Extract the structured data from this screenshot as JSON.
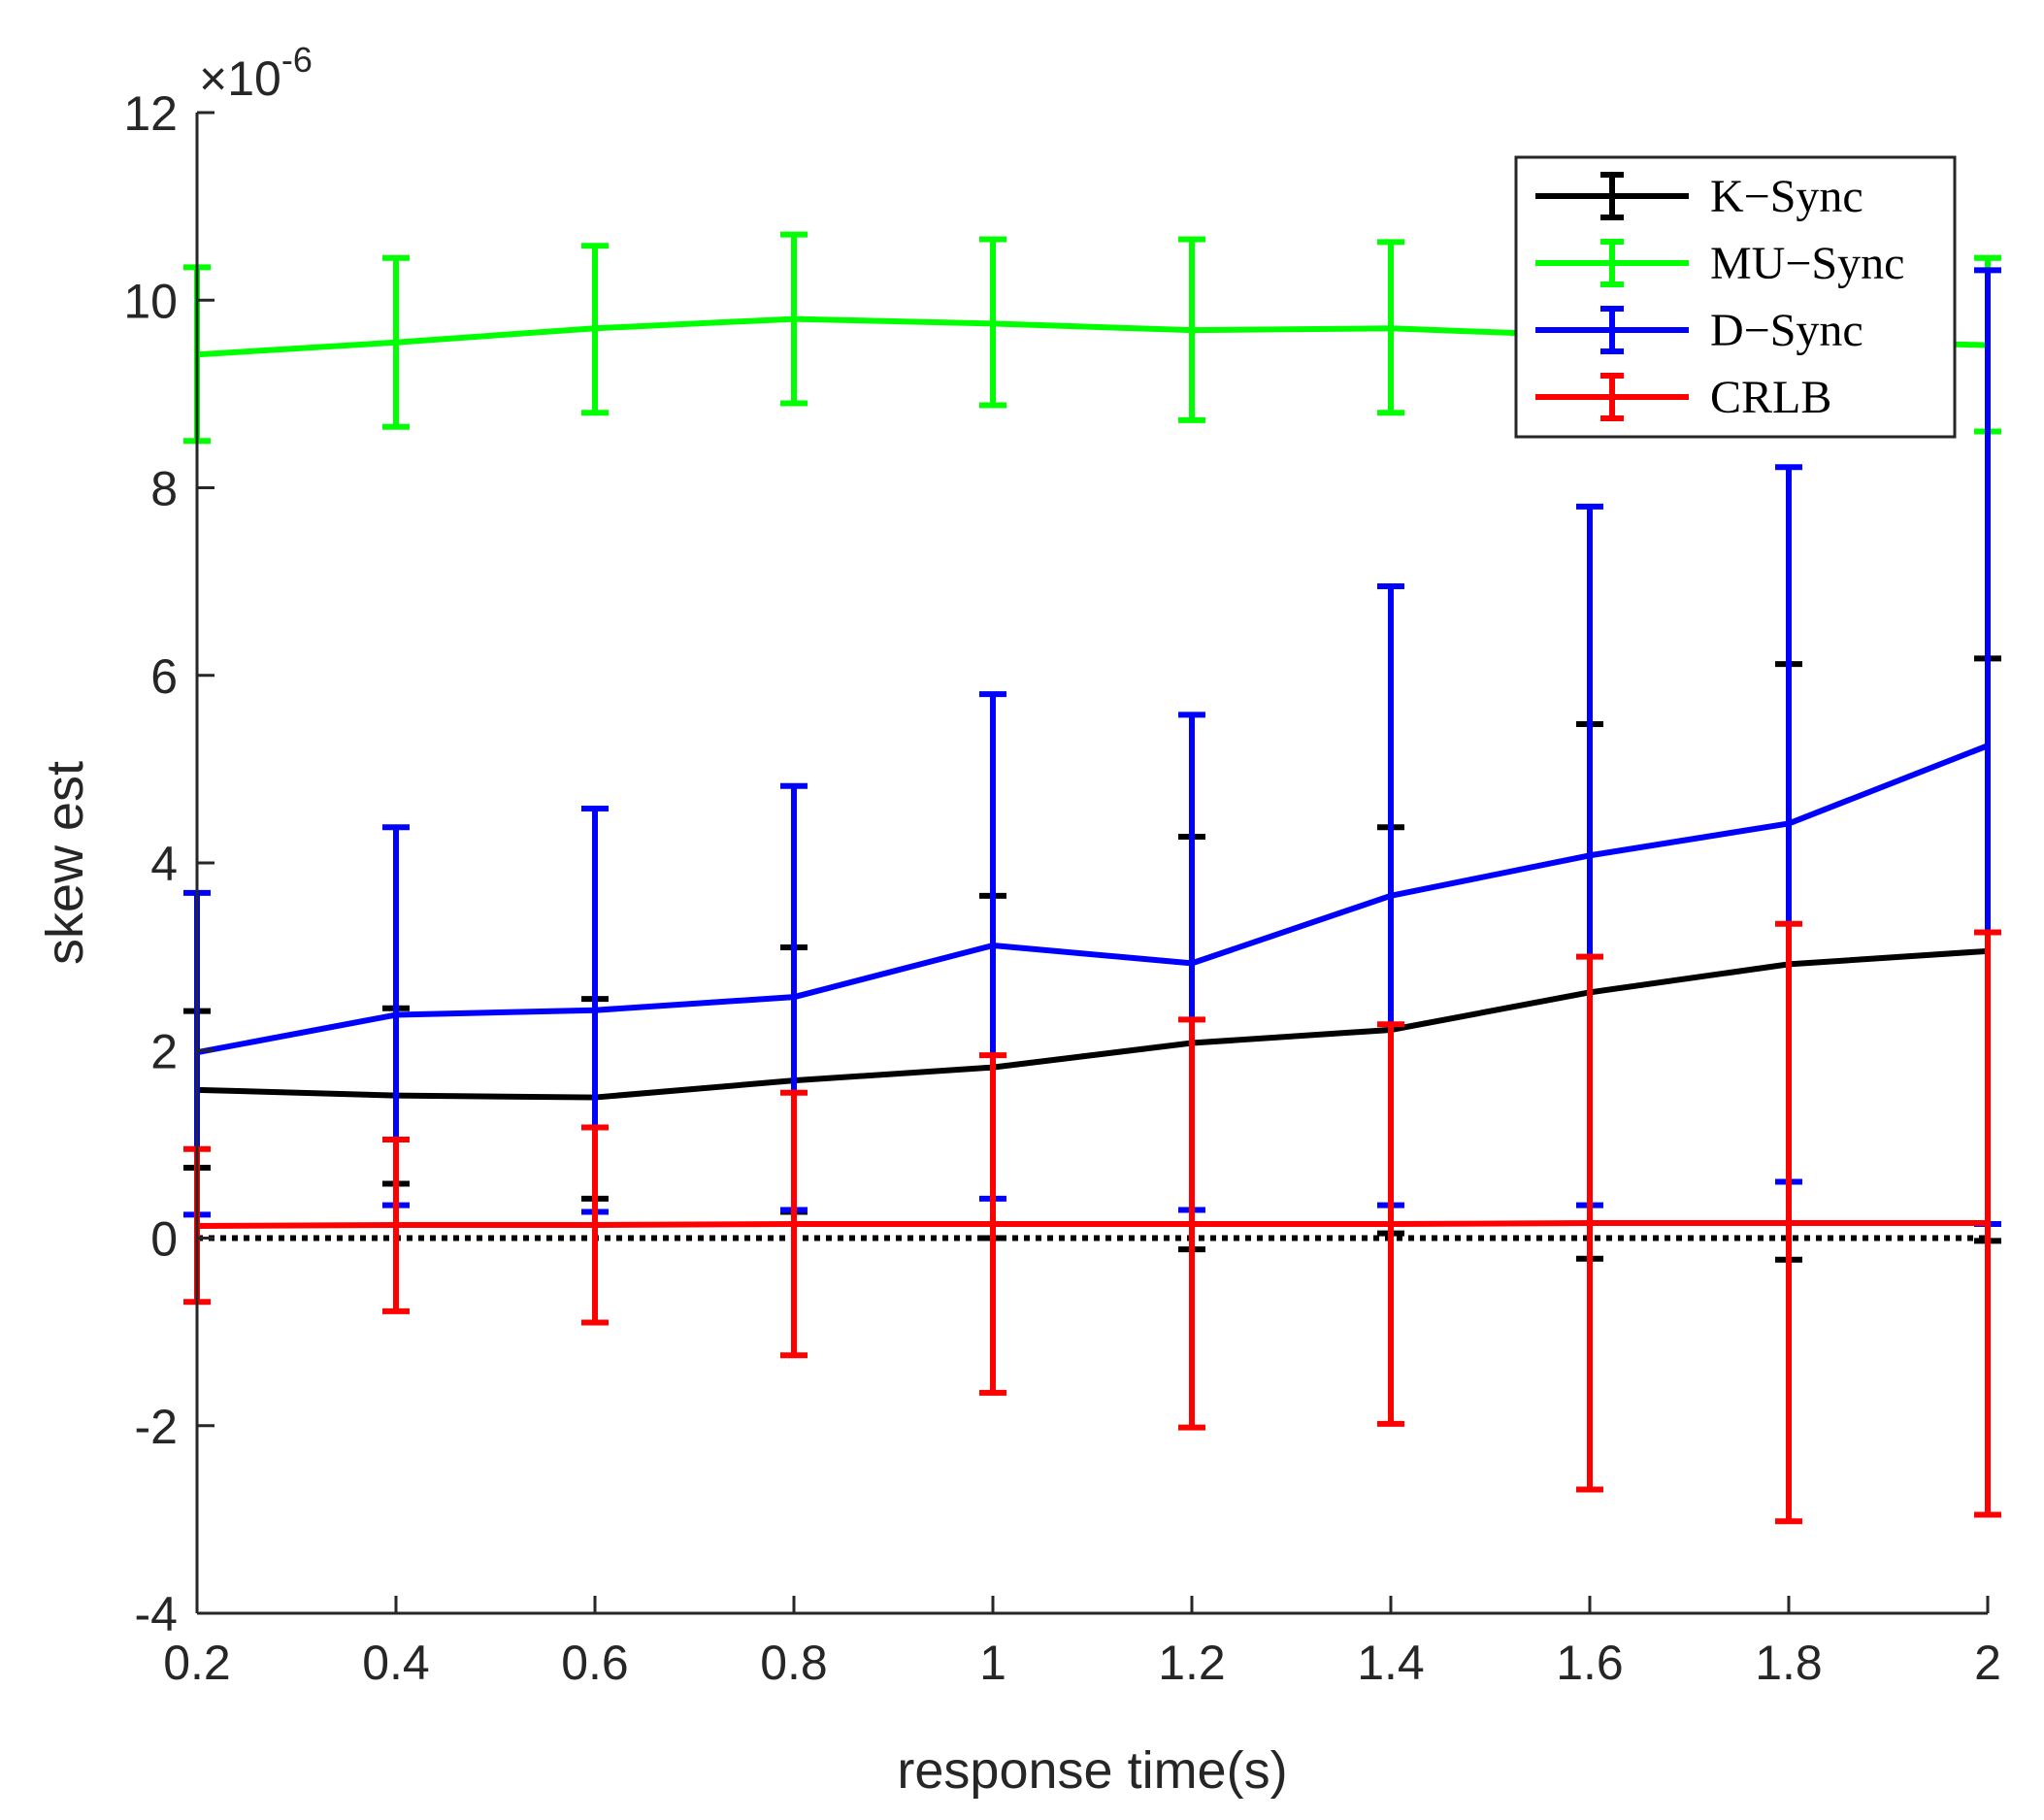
{
  "chart_data": {
    "type": "line",
    "xlabel": "response time(s)",
    "ylabel": "skew est",
    "y_multiplier": "×10",
    "y_exponent": "-6",
    "xlim": [
      0.2,
      2
    ],
    "ylim": [
      -4,
      12
    ],
    "x_ticks": [
      "0.2",
      "0.4",
      "0.6",
      "0.8",
      "1",
      "1.2",
      "1.4",
      "1.6",
      "1.8",
      "2"
    ],
    "y_ticks": [
      "-4",
      "-2",
      "0",
      "2",
      "4",
      "6",
      "8",
      "10",
      "12"
    ],
    "x": [
      0.2,
      0.4,
      0.6,
      0.8,
      1.0,
      1.2,
      1.4,
      1.6,
      1.8,
      2.0
    ],
    "legend_position": "top-right",
    "grid": false,
    "reference_line": {
      "y": 0,
      "style": "dotted",
      "color": "#000000"
    },
    "series": [
      {
        "name": "K−Sync",
        "color": "#000000",
        "values": [
          1.58,
          1.52,
          1.5,
          1.68,
          1.82,
          2.08,
          2.22,
          2.62,
          2.92,
          3.06
        ],
        "lower": [
          0.75,
          0.58,
          0.42,
          0.28,
          0.0,
          -0.12,
          0.05,
          -0.22,
          -0.23,
          -0.03
        ],
        "upper": [
          2.42,
          2.45,
          2.55,
          3.1,
          3.65,
          4.28,
          4.38,
          5.48,
          6.12,
          6.18
        ]
      },
      {
        "name": "MU−Sync",
        "color": "#00ff00",
        "values": [
          9.42,
          9.55,
          9.7,
          9.8,
          9.75,
          9.68,
          9.7,
          9.62,
          9.58,
          9.52
        ],
        "lower": [
          8.5,
          8.65,
          8.8,
          8.9,
          8.88,
          8.72,
          8.8,
          8.75,
          8.7,
          8.6
        ],
        "upper": [
          10.35,
          10.45,
          10.58,
          10.7,
          10.65,
          10.65,
          10.62,
          10.55,
          10.5,
          10.45
        ]
      },
      {
        "name": "D−Sync",
        "color": "#0000ff",
        "values": [
          1.98,
          2.38,
          2.43,
          2.57,
          3.12,
          2.93,
          3.65,
          4.08,
          4.42,
          5.25
        ],
        "lower": [
          0.25,
          0.35,
          0.28,
          0.3,
          0.42,
          0.3,
          0.35,
          0.35,
          0.6,
          0.15
        ],
        "upper": [
          3.68,
          4.38,
          4.58,
          4.82,
          5.8,
          5.58,
          6.95,
          7.8,
          8.22,
          10.32
        ]
      },
      {
        "name": "CRLB",
        "color": "#ff0000",
        "values": [
          0.13,
          0.14,
          0.14,
          0.15,
          0.15,
          0.15,
          0.15,
          0.16,
          0.16,
          0.16
        ],
        "lower": [
          -0.68,
          -0.78,
          -0.9,
          -1.25,
          -1.65,
          -2.02,
          -1.98,
          -2.68,
          -3.02,
          -2.95
        ],
        "upper": [
          0.95,
          1.05,
          1.18,
          1.55,
          1.95,
          2.33,
          2.28,
          3.0,
          3.35,
          3.26
        ]
      }
    ]
  }
}
